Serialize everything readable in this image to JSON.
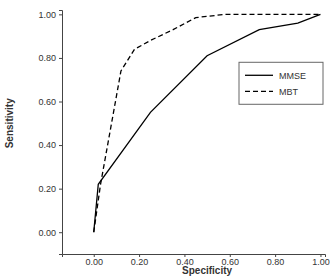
{
  "chart_data": {
    "type": "line",
    "x_label": "Specificity",
    "y_label": "Sensitivity",
    "xlim": [
      -0.14,
      1.02
    ],
    "ylim": [
      -0.1,
      1.02
    ],
    "xticks": [
      {
        "value": 0,
        "label": "0.00"
      },
      {
        "value": 0.2,
        "label": "0.20"
      },
      {
        "value": 0.4,
        "label": "0.40"
      },
      {
        "value": 0.6,
        "label": "0.60"
      },
      {
        "value": 0.8,
        "label": "0.80"
      },
      {
        "value": 1,
        "label": "1.00"
      }
    ],
    "yticks": [
      {
        "value": 0,
        "label": "0.00"
      },
      {
        "value": 0.2,
        "label": "0.20"
      },
      {
        "value": 0.4,
        "label": "0.40"
      },
      {
        "value": 0.6,
        "label": "0.60"
      },
      {
        "value": 0.8,
        "label": "0.80"
      },
      {
        "value": 1,
        "label": "1.00"
      }
    ],
    "legend": "right",
    "series": [
      {
        "name": "MMSE",
        "color": "#000000",
        "line_style": "solid",
        "x": [
          0,
          0.02,
          0.25,
          0.5,
          0.73,
          0.9,
          1.0
        ],
        "values": [
          0,
          0.22,
          0.55,
          0.81,
          0.93,
          0.96,
          1.0
        ]
      },
      {
        "name": "MBT",
        "color": "#000000",
        "line_style": "dashed",
        "x": [
          0,
          0.03,
          0.12,
          0.18,
          0.25,
          0.35,
          0.45,
          0.58,
          1.0
        ],
        "values": [
          0,
          0.22,
          0.74,
          0.84,
          0.88,
          0.93,
          0.985,
          1.0,
          1.0
        ]
      }
    ]
  }
}
